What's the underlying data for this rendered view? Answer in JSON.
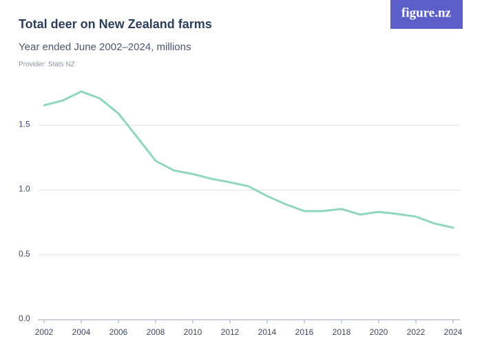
{
  "chart_data": {
    "type": "line",
    "title": "Total deer on New Zealand farms",
    "subtitle": "Year ended June 2002–2024, millions",
    "provider": "Provider: Stats NZ",
    "logo": "figure.nz",
    "x": [
      2002,
      2003,
      2004,
      2005,
      2006,
      2007,
      2008,
      2009,
      2010,
      2011,
      2012,
      2013,
      2014,
      2015,
      2016,
      2017,
      2018,
      2019,
      2020,
      2021,
      2022,
      2023,
      2024
    ],
    "series": [
      {
        "name": "Total deer",
        "color": "#8fd6bd",
        "values": [
          1.654,
          1.69,
          1.76,
          1.707,
          1.59,
          1.41,
          1.225,
          1.15,
          1.124,
          1.087,
          1.06,
          1.029,
          0.954,
          0.89,
          0.838,
          0.838,
          0.854,
          0.811,
          0.832,
          0.816,
          0.795,
          0.742,
          0.71
        ]
      }
    ],
    "xlim": [
      2002,
      2024
    ],
    "xticks": [
      2002,
      2004,
      2006,
      2008,
      2010,
      2012,
      2014,
      2016,
      2018,
      2020,
      2022,
      2024
    ],
    "ylim": [
      0,
      1.8
    ],
    "yticks": [
      {
        "value": 0,
        "label": "0.0"
      },
      0.5,
      {
        "value": 1,
        "label": "1.0"
      },
      1.5
    ],
    "grid": true
  }
}
